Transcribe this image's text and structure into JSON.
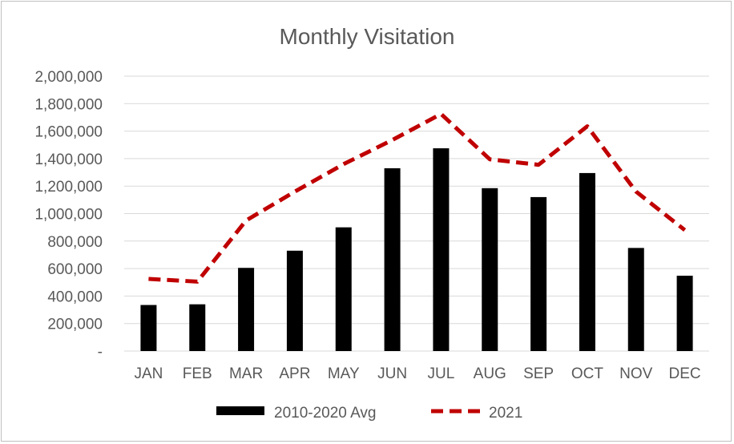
{
  "chart_data": {
    "type": "bar",
    "title": "Monthly Visitation",
    "xlabel": "",
    "ylabel": "",
    "categories": [
      "JAN",
      "FEB",
      "MAR",
      "APR",
      "MAY",
      "JUN",
      "JUL",
      "AUG",
      "SEP",
      "OCT",
      "NOV",
      "DEC"
    ],
    "ylim": [
      0,
      2000000
    ],
    "yticks": [
      0,
      200000,
      400000,
      600000,
      800000,
      1000000,
      1200000,
      1400000,
      1600000,
      1800000,
      2000000
    ],
    "ytick_labels": [
      "-",
      "200,000",
      "400,000",
      "600,000",
      "800,000",
      "1,000,000",
      "1,200,000",
      "1,400,000",
      "1,600,000",
      "1,800,000",
      "2,000,000"
    ],
    "grid": true,
    "legend_position": "bottom",
    "series": [
      {
        "name": "2010-2020 Avg",
        "type": "bar",
        "color": "#000000",
        "values": [
          335000,
          340000,
          605000,
          730000,
          900000,
          1330000,
          1475000,
          1185000,
          1120000,
          1295000,
          750000,
          548000
        ]
      },
      {
        "name": "2021",
        "type": "line",
        "style": "dashed",
        "color": "#c00000",
        "values": [
          525000,
          505000,
          950000,
          1160000,
          1360000,
          1535000,
          1725000,
          1395000,
          1355000,
          1635000,
          1160000,
          880000
        ]
      }
    ]
  }
}
